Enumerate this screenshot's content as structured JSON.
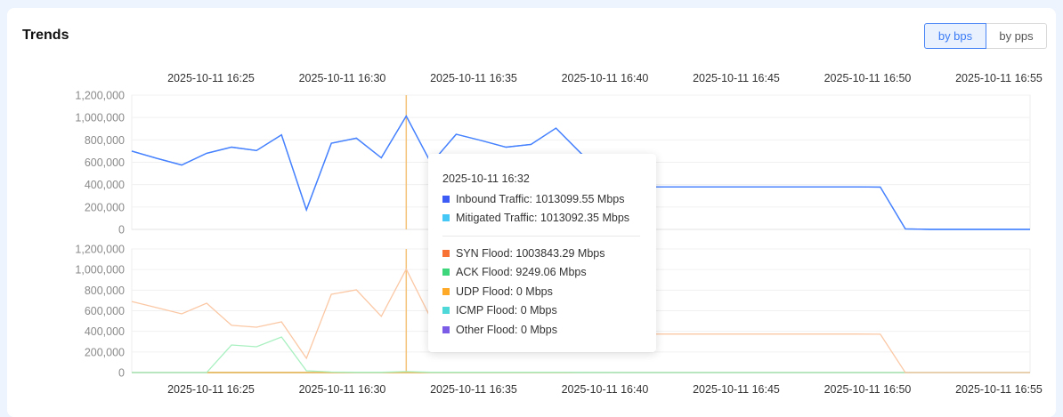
{
  "header": {
    "title": "Trends",
    "toggle": [
      {
        "label": "by bps",
        "active": true
      },
      {
        "label": "by pps",
        "active": false
      }
    ]
  },
  "colors": {
    "accent": "#3b7cf5",
    "crosshair": "#f5c27a"
  },
  "chart_data": [
    {
      "type": "line",
      "x_tick_labels": [
        "2025-10-11 16:25",
        "2025-10-11 16:30",
        "2025-10-11 16:35",
        "2025-10-11 16:40",
        "2025-10-11 16:45",
        "2025-10-11 16:50",
        "2025-10-11 16:55"
      ],
      "y_tick_labels": [
        "0",
        "200,000",
        "400,000",
        "600,000",
        "800,000",
        "1,000,000",
        "1,200,000"
      ],
      "ylim": [
        0,
        1200000
      ],
      "grid": true,
      "x": [
        "16:21",
        "16:22",
        "16:23",
        "16:24",
        "16:25",
        "16:26",
        "16:27",
        "16:28",
        "16:29",
        "16:30",
        "16:31",
        "16:32",
        "16:33",
        "16:34",
        "16:35",
        "16:36",
        "16:37",
        "16:38",
        "16:39",
        "16:40",
        "16:41",
        "16:42",
        "16:43",
        "16:44",
        "16:45",
        "16:46",
        "16:47",
        "16:48",
        "16:49",
        "16:50",
        "16:51",
        "16:52",
        "16:53",
        "16:54",
        "16:55",
        "16:56",
        "16:57"
      ],
      "series": [
        {
          "name": "Inbound Traffic",
          "color": "#4a7dff",
          "values": [
            700000,
            635000,
            575000,
            680000,
            735000,
            705000,
            845000,
            175000,
            770000,
            815000,
            640000,
            1013099.55,
            590000,
            850000,
            795000,
            735000,
            760000,
            905000,
            680000,
            500000,
            390000,
            380000,
            380000,
            380000,
            380000,
            380000,
            380000,
            380000,
            380000,
            380000,
            378000,
            5000,
            0,
            0,
            0,
            0,
            0
          ]
        },
        {
          "name": "Mitigated Traffic",
          "color": "#45c8f5",
          "values": [
            700000,
            635000,
            575000,
            680000,
            735000,
            705000,
            845000,
            175000,
            770000,
            815000,
            640000,
            1013092.35,
            590000,
            850000,
            795000,
            735000,
            760000,
            905000,
            680000,
            500000,
            390000,
            380000,
            380000,
            380000,
            380000,
            380000,
            380000,
            380000,
            380000,
            380000,
            378000,
            5000,
            0,
            0,
            0,
            0,
            0
          ]
        }
      ]
    },
    {
      "type": "line",
      "x_tick_labels": [
        "2025-10-11 16:25",
        "2025-10-11 16:30",
        "2025-10-11 16:35",
        "2025-10-11 16:40",
        "2025-10-11 16:45",
        "2025-10-11 16:50",
        "2025-10-11 16:55"
      ],
      "y_tick_labels": [
        "0",
        "200,000",
        "400,000",
        "600,000",
        "800,000",
        "1,000,000",
        "1,200,000"
      ],
      "ylim": [
        0,
        1200000
      ],
      "grid": true,
      "x": [
        "16:21",
        "16:22",
        "16:23",
        "16:24",
        "16:25",
        "16:26",
        "16:27",
        "16:28",
        "16:29",
        "16:30",
        "16:31",
        "16:32",
        "16:33",
        "16:34",
        "16:35",
        "16:36",
        "16:37",
        "16:38",
        "16:39",
        "16:40",
        "16:41",
        "16:42",
        "16:43",
        "16:44",
        "16:45",
        "16:46",
        "16:47",
        "16:48",
        "16:49",
        "16:50",
        "16:51",
        "16:52",
        "16:53",
        "16:54",
        "16:55",
        "16:56",
        "16:57"
      ],
      "series": [
        {
          "name": "SYN Flood",
          "color": "#fbc8a5",
          "values": [
            690000,
            630000,
            570000,
            673000,
            458000,
            440000,
            492000,
            138000,
            760000,
            803000,
            546000,
            1003843.29,
            520000,
            830000,
            780000,
            720000,
            745000,
            890000,
            665000,
            490000,
            385000,
            374000,
            374000,
            374000,
            374000,
            374000,
            374000,
            374000,
            374000,
            374000,
            372000,
            0,
            0,
            0,
            0,
            0,
            0
          ]
        },
        {
          "name": "ACK Flood",
          "color": "#a8f0c0",
          "values": [
            0,
            0,
            0,
            0,
            268000,
            250000,
            345000,
            17000,
            5000,
            3000,
            3000,
            9249.06,
            3000,
            3000,
            3000,
            3000,
            3000,
            3000,
            2000,
            1000,
            0,
            0,
            0,
            0,
            0,
            0,
            0,
            0,
            0,
            0,
            0,
            0,
            0,
            0,
            0,
            0,
            0
          ]
        },
        {
          "name": "UDP Flood",
          "color": "#ffa928",
          "values": [
            0,
            0,
            0,
            0,
            0,
            0,
            0,
            0,
            0,
            0,
            0,
            0,
            0,
            0,
            0,
            0,
            0,
            0,
            0,
            0,
            0,
            0,
            0,
            0,
            0,
            0,
            0,
            0,
            0,
            0,
            0,
            0,
            0,
            0,
            0,
            0,
            0
          ]
        },
        {
          "name": "ICMP Flood",
          "color": "#4fd8d8",
          "values": [
            0,
            0,
            0,
            0,
            0,
            0,
            0,
            0,
            0,
            0,
            0,
            0,
            0,
            0,
            0,
            0,
            0,
            0,
            0,
            0,
            0,
            0,
            0,
            0,
            0,
            0,
            0,
            0,
            0,
            0,
            0,
            0,
            0,
            0,
            0,
            0,
            0
          ]
        },
        {
          "name": "Other Flood",
          "color": "#aab0e0",
          "values": [
            0,
            0,
            0,
            0,
            0,
            0,
            0,
            0,
            0,
            0,
            0,
            0,
            0,
            0,
            0,
            0,
            0,
            0,
            0,
            0,
            0,
            0,
            0,
            0,
            0,
            0,
            0,
            0,
            0,
            0,
            0,
            0,
            0,
            0,
            0,
            0,
            0
          ]
        }
      ]
    }
  ],
  "tooltip": {
    "time": "2025-10-11 16:32",
    "crosshair_index": 11,
    "group1": [
      {
        "label": "Inbound Traffic: 1013099.55 Mbps",
        "color": "#3d5cf5"
      },
      {
        "label": "Mitigated Traffic: 1013092.35 Mbps",
        "color": "#45c8f5"
      }
    ],
    "group2": [
      {
        "label": "SYN Flood: 1003843.29 Mbps",
        "color": "#f77234"
      },
      {
        "label": "ACK Flood: 9249.06 Mbps",
        "color": "#3ed67a"
      },
      {
        "label": "UDP Flood: 0 Mbps",
        "color": "#ffa928"
      },
      {
        "label": "ICMP Flood: 0 Mbps",
        "color": "#4fd8d8"
      },
      {
        "label": "Other Flood: 0 Mbps",
        "color": "#7b5ce6"
      }
    ]
  }
}
